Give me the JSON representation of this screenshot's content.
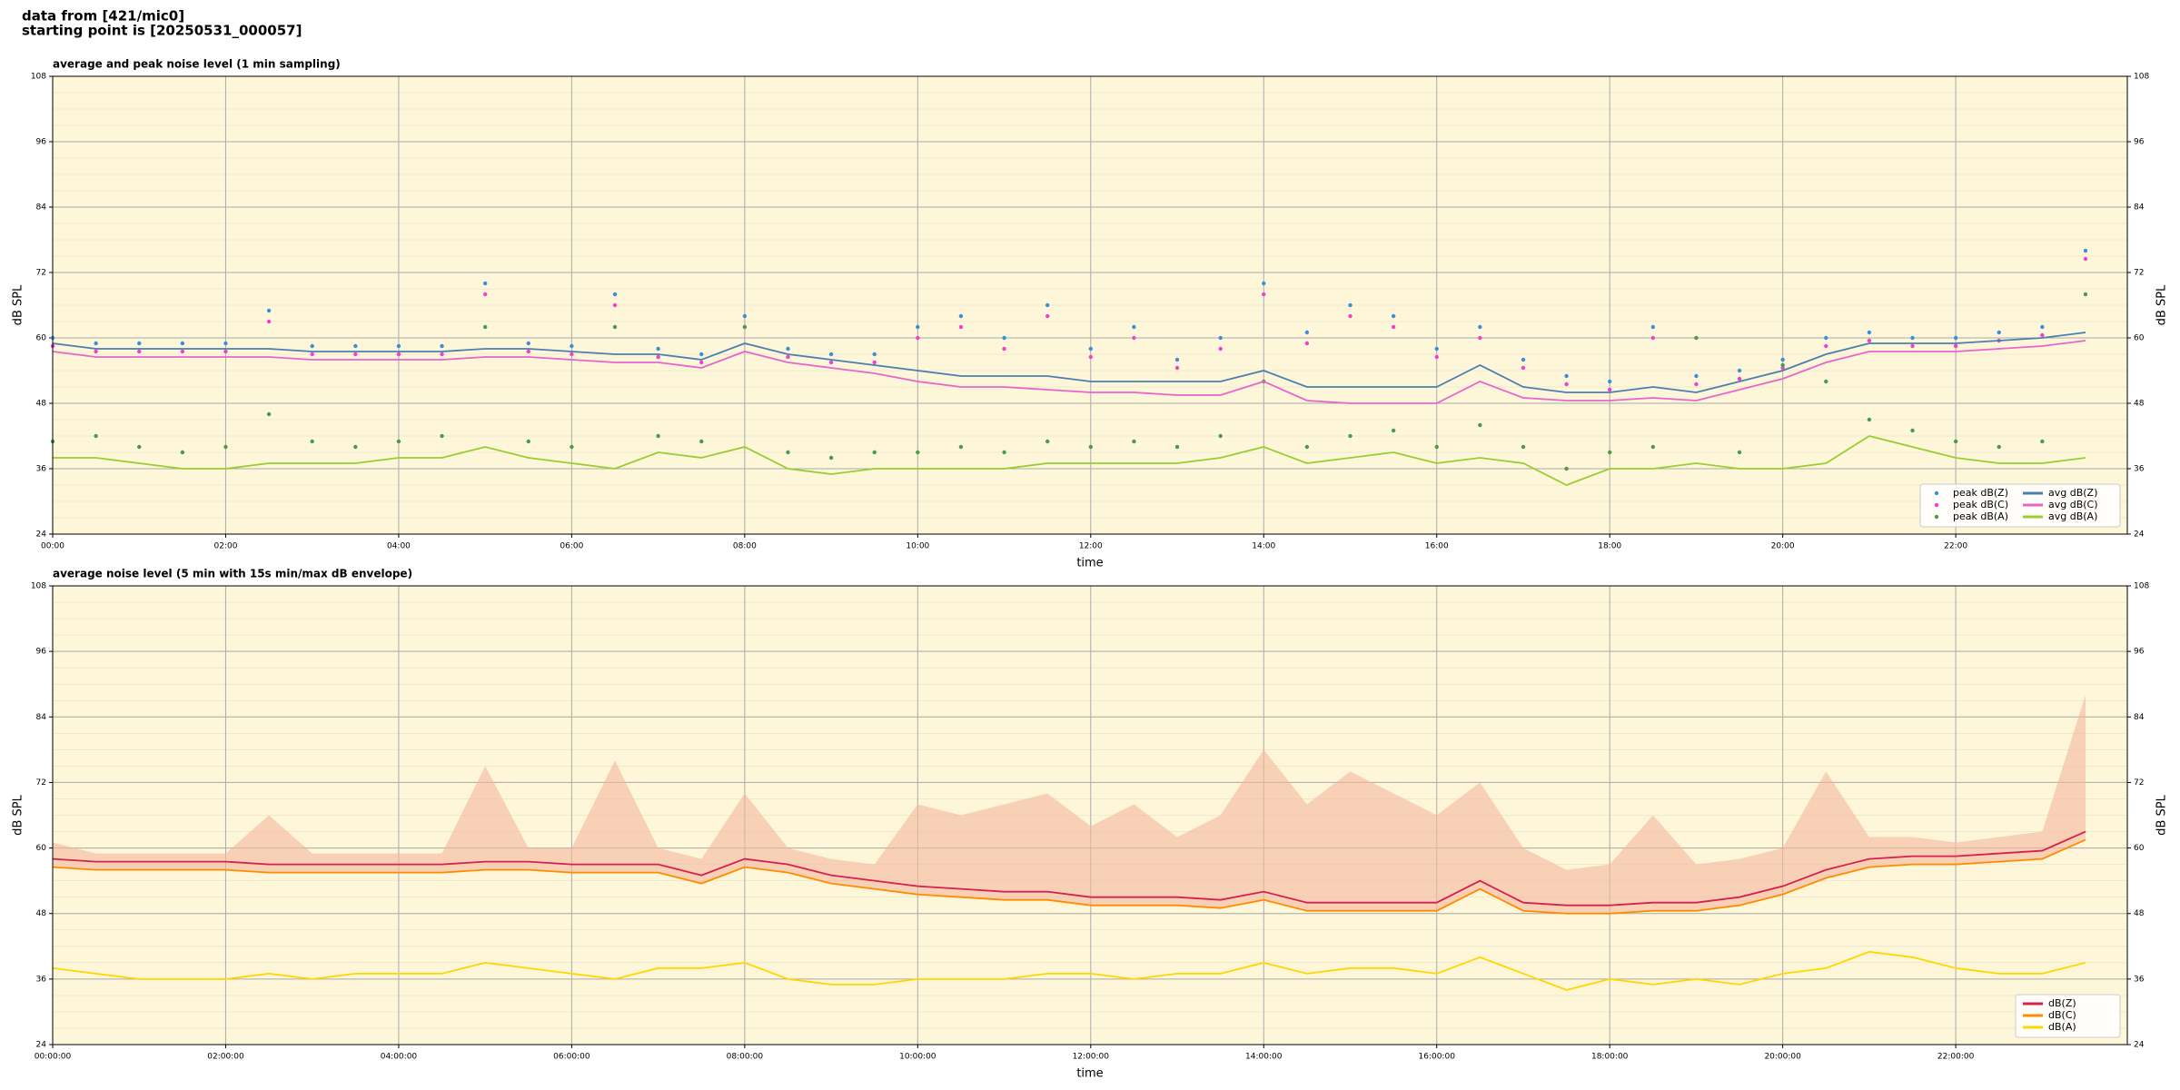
{
  "header": {
    "lines": [
      "data from [421/mic0]",
      "starting point is [20250531_000057]"
    ]
  },
  "chart_data": [
    {
      "type": "line",
      "title": "average and peak noise level (1 min sampling)",
      "xlabel": "time",
      "ylabel": "dB SPL",
      "x": [
        "00:00",
        "00:30",
        "01:00",
        "01:30",
        "02:00",
        "02:30",
        "03:00",
        "03:30",
        "04:00",
        "04:30",
        "05:00",
        "05:30",
        "06:00",
        "06:30",
        "07:00",
        "07:30",
        "08:00",
        "08:30",
        "09:00",
        "09:30",
        "10:00",
        "10:30",
        "11:00",
        "11:30",
        "12:00",
        "12:30",
        "13:00",
        "13:30",
        "14:00",
        "14:30",
        "15:00",
        "15:30",
        "16:00",
        "16:30",
        "17:00",
        "17:30",
        "18:00",
        "18:30",
        "19:00",
        "19:30",
        "20:00",
        "20:30",
        "21:00",
        "21:30",
        "22:00",
        "22:30",
        "23:00",
        "23:30"
      ],
      "xlim": [
        "00:00",
        "23:59"
      ],
      "xticks": [
        "00:00",
        "02:00",
        "04:00",
        "06:00",
        "08:00",
        "10:00",
        "12:00",
        "14:00",
        "16:00",
        "18:00",
        "20:00",
        "22:00"
      ],
      "ylim": [
        24,
        108
      ],
      "yticks": [
        24,
        36,
        48,
        60,
        72,
        84,
        96,
        108
      ],
      "grid": true,
      "legend": "lower right",
      "background": "#fdf6d9",
      "series": [
        {
          "name": "peak dB(Z)",
          "style": "dots",
          "color": "#3b8fd9",
          "values": [
            60,
            59,
            59,
            59,
            59,
            65,
            58.5,
            58.5,
            58.5,
            58.5,
            70,
            59,
            58.5,
            68,
            58,
            57,
            64,
            58,
            57,
            57,
            62,
            64,
            60,
            66,
            58,
            62,
            56,
            60,
            70,
            61,
            66,
            64,
            58,
            62,
            56,
            53,
            52,
            62,
            53,
            54,
            56,
            60,
            61,
            60,
            60,
            61,
            62,
            76
          ]
        },
        {
          "name": "peak dB(C)",
          "style": "dots",
          "color": "#f23fd0",
          "values": [
            58.5,
            57.5,
            57.5,
            57.5,
            57.5,
            63,
            57,
            57,
            57,
            57,
            68,
            57.5,
            57,
            66,
            56.5,
            55.5,
            62,
            56.5,
            55.5,
            55.5,
            60,
            62,
            58,
            64,
            56.5,
            60,
            54.5,
            58,
            68,
            59,
            64,
            62,
            56.5,
            60,
            54.5,
            51.5,
            50.5,
            60,
            51.5,
            52.5,
            54.5,
            58.5,
            59.5,
            58.5,
            58.5,
            59.5,
            60.5,
            74.5
          ]
        },
        {
          "name": "peak dB(A)",
          "style": "dots",
          "color": "#4a9a4a",
          "values": [
            41,
            42,
            40,
            39,
            40,
            46,
            41,
            40,
            41,
            42,
            62,
            41,
            40,
            62,
            42,
            41,
            62,
            39,
            38,
            39,
            39,
            40,
            39,
            41,
            40,
            41,
            40,
            42,
            52,
            40,
            42,
            43,
            40,
            44,
            40,
            36,
            39,
            40,
            60,
            39,
            55,
            52,
            45,
            43,
            41,
            40,
            41,
            68
          ]
        },
        {
          "name": "avg dB(Z)",
          "style": "line",
          "color": "#4a7fb0",
          "values": [
            59,
            58,
            58,
            58,
            58,
            58,
            57.5,
            57.5,
            57.5,
            57.5,
            58,
            58,
            57.5,
            57,
            57,
            56,
            59,
            57,
            56,
            55,
            54,
            53,
            53,
            53,
            52,
            52,
            52,
            52,
            54,
            51,
            51,
            51,
            51,
            55,
            51,
            50,
            50,
            51,
            50,
            52,
            54,
            57,
            59,
            59,
            59,
            59.5,
            60,
            61
          ]
        },
        {
          "name": "avg dB(C)",
          "style": "line",
          "color": "#e866cc",
          "values": [
            57.5,
            56.5,
            56.5,
            56.5,
            56.5,
            56.5,
            56,
            56,
            56,
            56,
            56.5,
            56.5,
            56,
            55.5,
            55.5,
            54.5,
            57.5,
            55.5,
            54.5,
            53.5,
            52,
            51,
            51,
            50.5,
            50,
            50,
            49.5,
            49.5,
            52,
            48.5,
            48,
            48,
            48,
            52,
            49,
            48.5,
            48.5,
            49,
            48.5,
            50.5,
            52.5,
            55.5,
            57.5,
            57.5,
            57.5,
            58,
            58.5,
            59.5
          ]
        },
        {
          "name": "avg dB(A)",
          "style": "line",
          "color": "#9acd32",
          "values": [
            38,
            38,
            37,
            36,
            36,
            37,
            37,
            37,
            38,
            38,
            40,
            38,
            37,
            36,
            39,
            38,
            40,
            36,
            35,
            36,
            36,
            36,
            36,
            37,
            37,
            37,
            37,
            38,
            40,
            37,
            38,
            39,
            37,
            38,
            37,
            33,
            36,
            36,
            37,
            36,
            36,
            37,
            42,
            40,
            38,
            37,
            37,
            38
          ]
        }
      ]
    },
    {
      "type": "line",
      "title": "average noise level (5 min with 15s min/max dB envelope)",
      "xlabel": "time",
      "ylabel": "dB SPL",
      "x": [
        "00:00:00",
        "00:30:00",
        "01:00:00",
        "01:30:00",
        "02:00:00",
        "02:30:00",
        "03:00:00",
        "03:30:00",
        "04:00:00",
        "04:30:00",
        "05:00:00",
        "05:30:00",
        "06:00:00",
        "06:30:00",
        "07:00:00",
        "07:30:00",
        "08:00:00",
        "08:30:00",
        "09:00:00",
        "09:30:00",
        "10:00:00",
        "10:30:00",
        "11:00:00",
        "11:30:00",
        "12:00:00",
        "12:30:00",
        "13:00:00",
        "13:30:00",
        "14:00:00",
        "14:30:00",
        "15:00:00",
        "15:30:00",
        "16:00:00",
        "16:30:00",
        "17:00:00",
        "17:30:00",
        "18:00:00",
        "18:30:00",
        "19:00:00",
        "19:30:00",
        "20:00:00",
        "20:30:00",
        "21:00:00",
        "21:30:00",
        "22:00:00",
        "22:30:00",
        "23:00:00",
        "23:30:00"
      ],
      "xlim": [
        "00:00:00",
        "23:59:00"
      ],
      "xticks": [
        "00:00:00",
        "02:00:00",
        "04:00:00",
        "06:00:00",
        "08:00:00",
        "10:00:00",
        "12:00:00",
        "14:00:00",
        "16:00:00",
        "18:00:00",
        "20:00:00",
        "22:00:00"
      ],
      "ylim": [
        24,
        108
      ],
      "yticks": [
        24,
        36,
        48,
        60,
        72,
        84,
        96,
        108
      ],
      "grid": true,
      "legend": "lower right",
      "background": "#fdf6d9",
      "envelope": {
        "color": "#f5b89c",
        "values": [
          61,
          59,
          59,
          59,
          59,
          66,
          59,
          59,
          59,
          59,
          75,
          60,
          60,
          76,
          60,
          58,
          70,
          60,
          58,
          57,
          68,
          66,
          68,
          70,
          64,
          68,
          62,
          66,
          78,
          68,
          74,
          70,
          66,
          72,
          60,
          56,
          57,
          66,
          57,
          58,
          60,
          74,
          62,
          62,
          61,
          62,
          63,
          88
        ]
      },
      "series": [
        {
          "name": "dB(Z)",
          "style": "line",
          "color": "#d6204e",
          "values": [
            58,
            57.5,
            57.5,
            57.5,
            57.5,
            57,
            57,
            57,
            57,
            57,
            57.5,
            57.5,
            57,
            57,
            57,
            55,
            58,
            57,
            55,
            54,
            53,
            52.5,
            52,
            52,
            51,
            51,
            51,
            50.5,
            52,
            50,
            50,
            50,
            50,
            54,
            50,
            49.5,
            49.5,
            50,
            50,
            51,
            53,
            56,
            58,
            58.5,
            58.5,
            59,
            59.5,
            63
          ]
        },
        {
          "name": "dB(C)",
          "style": "line",
          "color": "#ff8c00",
          "values": [
            56.5,
            56,
            56,
            56,
            56,
            55.5,
            55.5,
            55.5,
            55.5,
            55.5,
            56,
            56,
            55.5,
            55.5,
            55.5,
            53.5,
            56.5,
            55.5,
            53.5,
            52.5,
            51.5,
            51,
            50.5,
            50.5,
            49.5,
            49.5,
            49.5,
            49,
            50.5,
            48.5,
            48.5,
            48.5,
            48.5,
            52.5,
            48.5,
            48,
            48,
            48.5,
            48.5,
            49.5,
            51.5,
            54.5,
            56.5,
            57,
            57,
            57.5,
            58,
            61.5
          ]
        },
        {
          "name": "dB(A)",
          "style": "line",
          "color": "#ffd700",
          "values": [
            38,
            37,
            36,
            36,
            36,
            37,
            36,
            37,
            37,
            37,
            39,
            38,
            37,
            36,
            38,
            38,
            39,
            36,
            35,
            35,
            36,
            36,
            36,
            37,
            37,
            36,
            37,
            37,
            39,
            37,
            38,
            38,
            37,
            40,
            37,
            34,
            36,
            35,
            36,
            35,
            37,
            38,
            41,
            40,
            38,
            37,
            37,
            39
          ]
        }
      ]
    }
  ]
}
